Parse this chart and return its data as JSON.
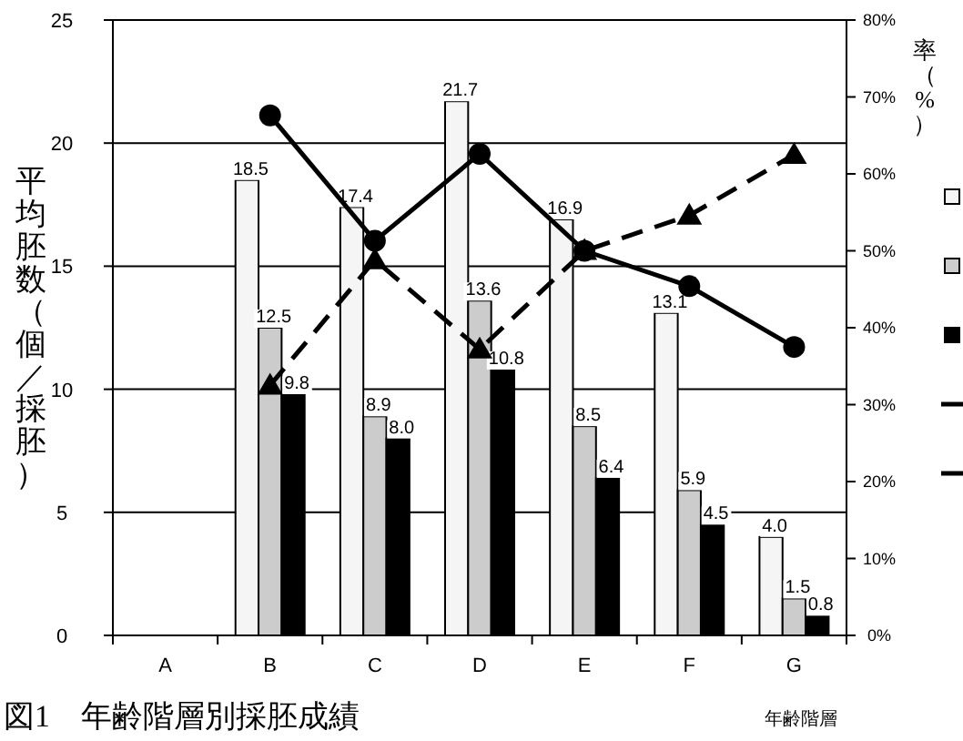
{
  "chart_data": {
    "type": "bar",
    "title": "図1　年齢階層別採胚成績",
    "xlabel": "年齢階層",
    "ylabel": "平均胚数（個／採胚）",
    "y2label": "率（%）",
    "categories": [
      "A",
      "B",
      "C",
      "D",
      "E",
      "F",
      "G"
    ],
    "series": [
      {
        "color": "#f5f5f5",
        "values": [
          null,
          18.5,
          17.4,
          21.7,
          16.9,
          13.1,
          4.0
        ],
        "value_labels": [
          null,
          "18.5",
          "17.4",
          "21.7",
          "16.9",
          "13.1",
          "4.0"
        ]
      },
      {
        "color": "#cccccc",
        "values": [
          null,
          12.5,
          8.9,
          13.6,
          8.5,
          5.9,
          1.5
        ],
        "value_labels": [
          null,
          "12.5",
          "8.9",
          "13.6",
          "8.5",
          "5.9",
          "1.5"
        ]
      },
      {
        "color": "#000000",
        "values": [
          null,
          9.8,
          8.0,
          10.8,
          6.4,
          4.5,
          0.8
        ],
        "value_labels": [
          null,
          "9.8",
          "8.0",
          "10.8",
          "6.4",
          "4.5",
          "0.8"
        ]
      },
      {
        "type": "line",
        "axis": "y2",
        "color": "#000000",
        "marker": "circle",
        "line_style": "solid",
        "values": [
          null,
          67.6,
          51.3,
          62.6,
          50.0,
          45.4,
          37.5
        ]
      },
      {
        "type": "line",
        "axis": "y2",
        "color": "#000000",
        "marker": "triangle",
        "line_style": "dashed",
        "values": [
          null,
          32.5,
          48.8,
          37.2,
          50.0,
          54.6,
          62.5
        ]
      }
    ],
    "ylim": [
      0,
      25
    ],
    "yticks": [
      0,
      5,
      10,
      15,
      20,
      25
    ],
    "y2lim": [
      0,
      80
    ],
    "y2ticks": [
      {
        "value": 0,
        "label": "0%"
      },
      {
        "value": 10,
        "label": "10%"
      },
      {
        "value": 20,
        "label": "20%"
      },
      {
        "value": 30,
        "label": "30%"
      },
      {
        "value": 40,
        "label": "40%"
      },
      {
        "value": 50,
        "label": "50%"
      },
      {
        "value": 60,
        "label": "60%"
      },
      {
        "value": 70,
        "label": "70%"
      },
      {
        "value": 80,
        "label": "80%"
      }
    ],
    "grid": "y"
  }
}
